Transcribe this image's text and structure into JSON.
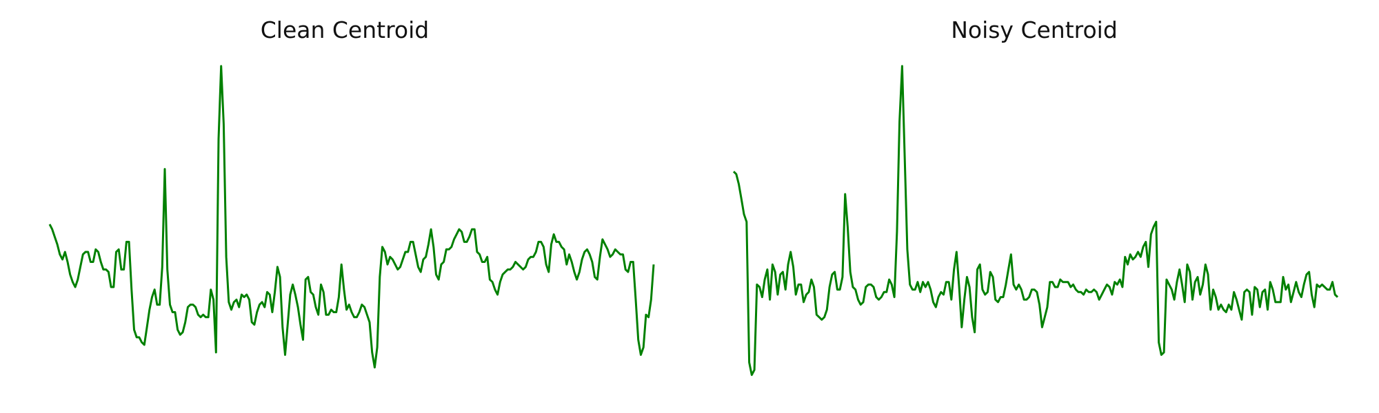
{
  "chart_data": [
    {
      "type": "line",
      "title": "Clean Centroid",
      "axes_visible": false,
      "grid": false,
      "color": "#008000",
      "ylim": [
        0,
        100
      ],
      "values": [
        57,
        55,
        52,
        49,
        45,
        43,
        46,
        42,
        37,
        34,
        32,
        35,
        40,
        45,
        46,
        46,
        42,
        42,
        47,
        46,
        42,
        39,
        39,
        38,
        32,
        32,
        46,
        47,
        39,
        39,
        50,
        50,
        31,
        15,
        12,
        12,
        10,
        9,
        16,
        23,
        28,
        31,
        25,
        25,
        40,
        79,
        39,
        25,
        22,
        22,
        15,
        13,
        14,
        18,
        24,
        25,
        25,
        24,
        21,
        20,
        21,
        20,
        20,
        31,
        27,
        6,
        91,
        120,
        97,
        44,
        26,
        23,
        26,
        27,
        24,
        29,
        28,
        29,
        27,
        18,
        17,
        22,
        25,
        26,
        24,
        30,
        29,
        22,
        30,
        40,
        36,
        16,
        5,
        17,
        29,
        33,
        29,
        24,
        17,
        11,
        35,
        36,
        30,
        29,
        24,
        21,
        33,
        30,
        21,
        21,
        23,
        22,
        22,
        28,
        41,
        31,
        23,
        25,
        22,
        20,
        20,
        22,
        25,
        24,
        21,
        18,
        6,
        0,
        8,
        36,
        48,
        46,
        41,
        44,
        43,
        41,
        39,
        40,
        43,
        46,
        46,
        50,
        50,
        45,
        40,
        38,
        43,
        44,
        49,
        55,
        48,
        37,
        35,
        41,
        42,
        47,
        47,
        48,
        51,
        53,
        55,
        54,
        50,
        50,
        52,
        55,
        55,
        46,
        45,
        42,
        42,
        44,
        35,
        34,
        31,
        29,
        34,
        37,
        38,
        39,
        39,
        40,
        42,
        41,
        40,
        39,
        40,
        43,
        44,
        44,
        46,
        50,
        50,
        48,
        41,
        38,
        49,
        53,
        50,
        50,
        48,
        47,
        41,
        45,
        42,
        38,
        35,
        38,
        43,
        46,
        47,
        45,
        42,
        36,
        35,
        44,
        51,
        49,
        47,
        44,
        45,
        47,
        46,
        45,
        45,
        39,
        38,
        42,
        42,
        27,
        11,
        5,
        8,
        21,
        20,
        27,
        41
      ]
    },
    {
      "type": "line",
      "title": "Noisy Centroid",
      "axes_visible": false,
      "grid": false,
      "color": "#008000",
      "ylim": [
        0,
        100
      ],
      "values": [
        78,
        77,
        73,
        67,
        61,
        58,
        2,
        -3,
        -1,
        33,
        32,
        28,
        35,
        39,
        27,
        41,
        38,
        29,
        37,
        38,
        31,
        41,
        46,
        40,
        29,
        33,
        33,
        26,
        29,
        30,
        35,
        32,
        21,
        20,
        19,
        20,
        23,
        32,
        37,
        38,
        31,
        31,
        36,
        69,
        56,
        38,
        32,
        31,
        27,
        25,
        26,
        32,
        33,
        33,
        32,
        28,
        27,
        28,
        30,
        30,
        35,
        33,
        28,
        54,
        98,
        120,
        84,
        47,
        33,
        31,
        31,
        34,
        30,
        34,
        32,
        34,
        31,
        26,
        24,
        28,
        30,
        29,
        34,
        34,
        27,
        39,
        46,
        32,
        16,
        27,
        36,
        32,
        20,
        14,
        39,
        41,
        31,
        29,
        30,
        38,
        36,
        27,
        26,
        28,
        28,
        33,
        39,
        45,
        33,
        31,
        33,
        31,
        27,
        27,
        28,
        31,
        31,
        30,
        25,
        16,
        20,
        24,
        34,
        34,
        32,
        32,
        35,
        34,
        34,
        34,
        32,
        33,
        31,
        30,
        30,
        29,
        31,
        30,
        30,
        31,
        30,
        27,
        29,
        31,
        33,
        32,
        29,
        34,
        33,
        35,
        32,
        44,
        41,
        45,
        43,
        44,
        46,
        44,
        48,
        50,
        40,
        53,
        56,
        58,
        10,
        5,
        6,
        35,
        33,
        31,
        27,
        34,
        39,
        33,
        26,
        41,
        38,
        27,
        34,
        36,
        29,
        33,
        41,
        37,
        23,
        31,
        28,
        23,
        25,
        23,
        22,
        25,
        23,
        30,
        27,
        23,
        19,
        30,
        31,
        30,
        21,
        32,
        31,
        24,
        30,
        31,
        23,
        34,
        31,
        26,
        26,
        26,
        36,
        31,
        33,
        26,
        30,
        34,
        30,
        28,
        33,
        37,
        38,
        29,
        24,
        33,
        32,
        33,
        32,
        31,
        31,
        34,
        29,
        28
      ]
    }
  ]
}
